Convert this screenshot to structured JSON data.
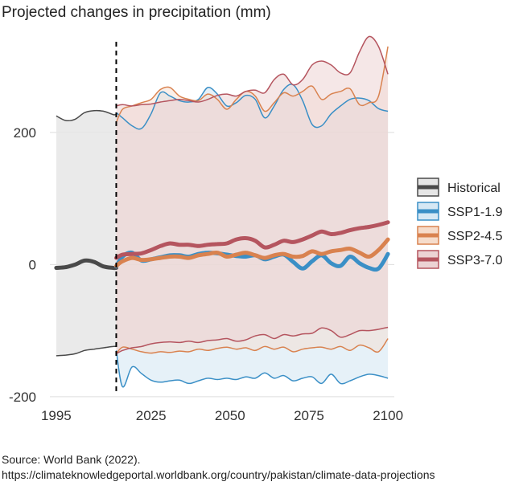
{
  "title": "Projected changes in precipitation (mm)",
  "source_line1": "Source: World Bank (2022).",
  "source_line2": "https://climateknowledgeportal.worldbank.org/country/pakistan/climate-data-projections",
  "colors": {
    "historical": "#4a4a4a",
    "ssp119": "#3a8fc6",
    "ssp245": "#d9824f",
    "ssp370": "#b5555f",
    "grid": "#dddddd",
    "divider": "#000000"
  },
  "chart_data": {
    "type": "line",
    "title": "Projected changes in precipitation (mm)",
    "xlabel": "",
    "ylabel": "",
    "xlim": [
      1993,
      2102
    ],
    "ylim": [
      -205,
      325
    ],
    "x_ticks": [
      1995,
      2025,
      2050,
      2075,
      2100
    ],
    "y_ticks": [
      200,
      0,
      -200
    ],
    "y_tick_labels": [
      "200",
      "0",
      "-200"
    ],
    "grid": "horizontal",
    "legend_position": "right",
    "divider_year": 2014,
    "series": [
      {
        "name": "Historical",
        "color_key": "historical",
        "x": [
          1995,
          1998,
          2001,
          2004,
          2007,
          2010,
          2013,
          2014
        ],
        "mean": [
          -5,
          -4,
          0,
          6,
          4,
          -3,
          -5,
          -5
        ],
        "upper": [
          225,
          218,
          220,
          230,
          233,
          232,
          227,
          227
        ],
        "lower": [
          -138,
          -137,
          -135,
          -130,
          -128,
          -126,
          -124,
          -124
        ]
      },
      {
        "name": "SSP1-1.9",
        "color_key": "ssp119",
        "x": [
          2014,
          2016,
          2019,
          2022,
          2025,
          2028,
          2031,
          2034,
          2037,
          2040,
          2043,
          2046,
          2049,
          2052,
          2055,
          2058,
          2061,
          2064,
          2067,
          2070,
          2073,
          2076,
          2079,
          2082,
          2085,
          2088,
          2091,
          2094,
          2097,
          2100
        ],
        "mean": [
          -3,
          12,
          18,
          6,
          8,
          11,
          14,
          14,
          12,
          16,
          18,
          17,
          15,
          13,
          12,
          14,
          8,
          12,
          15,
          4,
          -6,
          5,
          14,
          2,
          -2,
          12,
          2,
          -5,
          -6,
          16
        ],
        "upper": [
          230,
          222,
          210,
          206,
          228,
          260,
          255,
          248,
          246,
          250,
          268,
          258,
          240,
          245,
          256,
          250,
          222,
          240,
          265,
          272,
          248,
          212,
          210,
          228,
          240,
          250,
          252,
          248,
          236,
          232
        ],
        "lower": [
          -130,
          -185,
          -155,
          -165,
          -175,
          -178,
          -176,
          -175,
          -180,
          -176,
          -172,
          -174,
          -172,
          -174,
          -170,
          -172,
          -164,
          -172,
          -168,
          -176,
          -172,
          -170,
          -180,
          -166,
          -180,
          -176,
          -170,
          -166,
          -168,
          -172
        ]
      },
      {
        "name": "SSP2-4.5",
        "color_key": "ssp245",
        "x": [
          2014,
          2016,
          2019,
          2022,
          2025,
          2028,
          2031,
          2034,
          2037,
          2040,
          2043,
          2046,
          2049,
          2052,
          2055,
          2058,
          2061,
          2064,
          2067,
          2070,
          2073,
          2076,
          2079,
          2082,
          2085,
          2088,
          2091,
          2094,
          2097,
          2100
        ],
        "mean": [
          -2,
          5,
          10,
          7,
          8,
          10,
          12,
          12,
          10,
          14,
          16,
          18,
          12,
          15,
          18,
          14,
          10,
          14,
          16,
          12,
          13,
          20,
          16,
          20,
          22,
          24,
          18,
          12,
          22,
          38
        ],
        "upper": [
          215,
          235,
          240,
          245,
          250,
          265,
          268,
          255,
          250,
          248,
          258,
          250,
          235,
          250,
          262,
          255,
          232,
          245,
          260,
          255,
          262,
          270,
          250,
          258,
          262,
          266,
          242,
          245,
          255,
          330
        ],
        "lower": [
          -135,
          -125,
          -128,
          -132,
          -134,
          -132,
          -133,
          -131,
          -132,
          -128,
          -130,
          -127,
          -125,
          -128,
          -126,
          -130,
          -124,
          -128,
          -125,
          -132,
          -128,
          -126,
          -125,
          -128,
          -124,
          -130,
          -122,
          -126,
          -132,
          -112
        ]
      },
      {
        "name": "SSP3-7.0",
        "color_key": "ssp370",
        "x": [
          2014,
          2016,
          2019,
          2022,
          2025,
          2028,
          2031,
          2034,
          2037,
          2040,
          2043,
          2046,
          2049,
          2052,
          2055,
          2058,
          2061,
          2064,
          2067,
          2070,
          2073,
          2076,
          2079,
          2082,
          2085,
          2088,
          2091,
          2094,
          2097,
          2100
        ],
        "mean": [
          10,
          15,
          16,
          17,
          22,
          28,
          32,
          30,
          30,
          28,
          30,
          31,
          32,
          38,
          40,
          36,
          26,
          30,
          36,
          34,
          38,
          44,
          50,
          46,
          48,
          52,
          55,
          57,
          60,
          64
        ],
        "upper": [
          240,
          242,
          240,
          242,
          243,
          246,
          248,
          250,
          248,
          246,
          250,
          256,
          258,
          255,
          262,
          264,
          260,
          280,
          288,
          272,
          280,
          302,
          308,
          302,
          290,
          290,
          322,
          345,
          330,
          288
        ],
        "lower": [
          -135,
          -130,
          -126,
          -124,
          -120,
          -118,
          -117,
          -118,
          -116,
          -118,
          -115,
          -114,
          -112,
          -116,
          -114,
          -108,
          -106,
          -112,
          -106,
          -108,
          -105,
          -104,
          -96,
          -100,
          -110,
          -106,
          -100,
          -100,
          -98,
          -95
        ]
      }
    ],
    "legend": [
      "Historical",
      "SSP1-1.9",
      "SSP2-4.5",
      "SSP3-7.0"
    ]
  }
}
